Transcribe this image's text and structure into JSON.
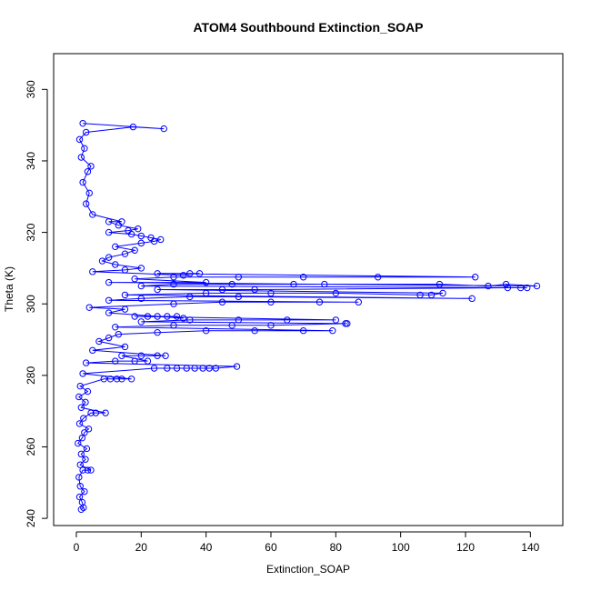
{
  "chart_data": {
    "type": "scatter",
    "title": "ATOM4 Southbound Extinction_SOAP",
    "xlabel": "Extinction_SOAP",
    "ylabel": "Theta (K)",
    "xlim": [
      -7,
      150
    ],
    "ylim": [
      238,
      370
    ],
    "xticks": [
      0,
      20,
      40,
      60,
      80,
      100,
      120,
      140
    ],
    "yticks": [
      240,
      260,
      280,
      300,
      320,
      340,
      360
    ],
    "grid": false,
    "legend": "none",
    "series": [
      {
        "color": "#0000ff",
        "marker": "open-circle",
        "connected": true,
        "points": [
          [
            1.5,
            242.5
          ],
          [
            2.2,
            243.0
          ],
          [
            1.8,
            244.5
          ],
          [
            1.0,
            246.0
          ],
          [
            2.5,
            247.5
          ],
          [
            1.2,
            249.0
          ],
          [
            0.8,
            251.5
          ],
          [
            2.0,
            253.5
          ],
          [
            3.5,
            253.5
          ],
          [
            4.5,
            253.5
          ],
          [
            1.2,
            255.0
          ],
          [
            2.8,
            256.5
          ],
          [
            1.5,
            258.0
          ],
          [
            3.2,
            259.5
          ],
          [
            0.5,
            261.0
          ],
          [
            1.8,
            262.5
          ],
          [
            2.5,
            264.0
          ],
          [
            3.8,
            265.0
          ],
          [
            1.0,
            266.5
          ],
          [
            2.2,
            268.0
          ],
          [
            4.5,
            269.5
          ],
          [
            6.0,
            269.5
          ],
          [
            9.0,
            269.5
          ],
          [
            1.5,
            271.0
          ],
          [
            2.8,
            272.5
          ],
          [
            0.8,
            274.0
          ],
          [
            3.5,
            275.5
          ],
          [
            1.2,
            277.0
          ],
          [
            8.5,
            279.0
          ],
          [
            10.5,
            279.0
          ],
          [
            12.5,
            279.0
          ],
          [
            14.0,
            279.0
          ],
          [
            17.0,
            279.0
          ],
          [
            2.0,
            280.5
          ],
          [
            24.0,
            282.0
          ],
          [
            28.0,
            282.0
          ],
          [
            31.0,
            282.0
          ],
          [
            34.0,
            282.0
          ],
          [
            36.5,
            282.0
          ],
          [
            39.0,
            282.0
          ],
          [
            41.0,
            282.0
          ],
          [
            43.0,
            282.0
          ],
          [
            49.5,
            282.5
          ],
          [
            3.0,
            283.5
          ],
          [
            12.0,
            284.0
          ],
          [
            18.0,
            284.0
          ],
          [
            22.0,
            284.0
          ],
          [
            14.0,
            285.5
          ],
          [
            20.0,
            285.5
          ],
          [
            25.0,
            285.5
          ],
          [
            27.5,
            285.5
          ],
          [
            5.0,
            287.0
          ],
          [
            15.0,
            288.0
          ],
          [
            7.0,
            289.5
          ],
          [
            10.0,
            290.5
          ],
          [
            13.0,
            291.5
          ],
          [
            25.0,
            292.0
          ],
          [
            40.0,
            292.5
          ],
          [
            55.0,
            292.5
          ],
          [
            70.0,
            292.5
          ],
          [
            79.0,
            292.5
          ],
          [
            12.0,
            293.5
          ],
          [
            30.0,
            294.0
          ],
          [
            48.0,
            294.0
          ],
          [
            60.0,
            294.0
          ],
          [
            83.0,
            294.5
          ],
          [
            83.5,
            294.5
          ],
          [
            20.0,
            295.0
          ],
          [
            35.0,
            295.5
          ],
          [
            50.0,
            295.5
          ],
          [
            65.0,
            295.5
          ],
          [
            80.0,
            295.5
          ],
          [
            18.0,
            296.5
          ],
          [
            22.0,
            296.5
          ],
          [
            25.0,
            296.5
          ],
          [
            28.0,
            296.5
          ],
          [
            31.0,
            296.5
          ],
          [
            33.0,
            296.0
          ],
          [
            10.0,
            297.5
          ],
          [
            15.0,
            298.5
          ],
          [
            4.0,
            299.0
          ],
          [
            30.0,
            300.0
          ],
          [
            45.0,
            300.5
          ],
          [
            60.0,
            300.5
          ],
          [
            75.0,
            300.5
          ],
          [
            87.0,
            300.5
          ],
          [
            10.0,
            301.0
          ],
          [
            20.0,
            301.5
          ],
          [
            35.0,
            302.0
          ],
          [
            50.0,
            302.0
          ],
          [
            122.0,
            301.5
          ],
          [
            15.0,
            302.5
          ],
          [
            40.0,
            303.0
          ],
          [
            60.0,
            303.0
          ],
          [
            80.0,
            303.0
          ],
          [
            106.0,
            302.5
          ],
          [
            109.5,
            302.5
          ],
          [
            113.0,
            303.0
          ],
          [
            25.0,
            304.0
          ],
          [
            45.0,
            304.0
          ],
          [
            55.0,
            304.0
          ],
          [
            133.0,
            304.5
          ],
          [
            137.0,
            304.5
          ],
          [
            139.0,
            304.5
          ],
          [
            20.0,
            305.0
          ],
          [
            30.0,
            305.5
          ],
          [
            48.0,
            305.5
          ],
          [
            67.0,
            305.5
          ],
          [
            76.5,
            305.5
          ],
          [
            112.0,
            305.5
          ],
          [
            127.0,
            305.0
          ],
          [
            132.5,
            305.5
          ],
          [
            142.0,
            305.0
          ],
          [
            10.0,
            306.0
          ],
          [
            40.0,
            306.0
          ],
          [
            18.0,
            307.0
          ],
          [
            30.0,
            307.5
          ],
          [
            50.0,
            307.5
          ],
          [
            70.0,
            307.5
          ],
          [
            93.0,
            307.5
          ],
          [
            123.0,
            307.5
          ],
          [
            25.0,
            308.5
          ],
          [
            35.0,
            308.5
          ],
          [
            38.0,
            308.5
          ],
          [
            33.0,
            308.0
          ],
          [
            5.0,
            309.0
          ],
          [
            15.0,
            309.5
          ],
          [
            20.0,
            310.0
          ],
          [
            12.0,
            311.0
          ],
          [
            8.0,
            312.0
          ],
          [
            10.0,
            313.0
          ],
          [
            15.0,
            314.0
          ],
          [
            18.0,
            315.0
          ],
          [
            12.0,
            316.0
          ],
          [
            20.0,
            317.0
          ],
          [
            24.0,
            317.5
          ],
          [
            26.0,
            318.0
          ],
          [
            23.0,
            318.5
          ],
          [
            20.0,
            319.0
          ],
          [
            17.0,
            319.5
          ],
          [
            10.0,
            320.0
          ],
          [
            16.0,
            320.5
          ],
          [
            19.0,
            321.0
          ],
          [
            13.0,
            322.0
          ],
          [
            10.0,
            323.0
          ],
          [
            14.0,
            323.0
          ],
          [
            5.0,
            325.0
          ],
          [
            3.0,
            328.0
          ],
          [
            4.0,
            331.0
          ],
          [
            2.0,
            334.0
          ],
          [
            3.5,
            337.0
          ],
          [
            4.5,
            338.5
          ],
          [
            1.5,
            341.0
          ],
          [
            2.5,
            343.5
          ],
          [
            1.0,
            346.0
          ],
          [
            3.0,
            348.0
          ],
          [
            17.5,
            349.5
          ],
          [
            27.0,
            349.0
          ],
          [
            2.0,
            350.5
          ]
        ]
      }
    ]
  }
}
